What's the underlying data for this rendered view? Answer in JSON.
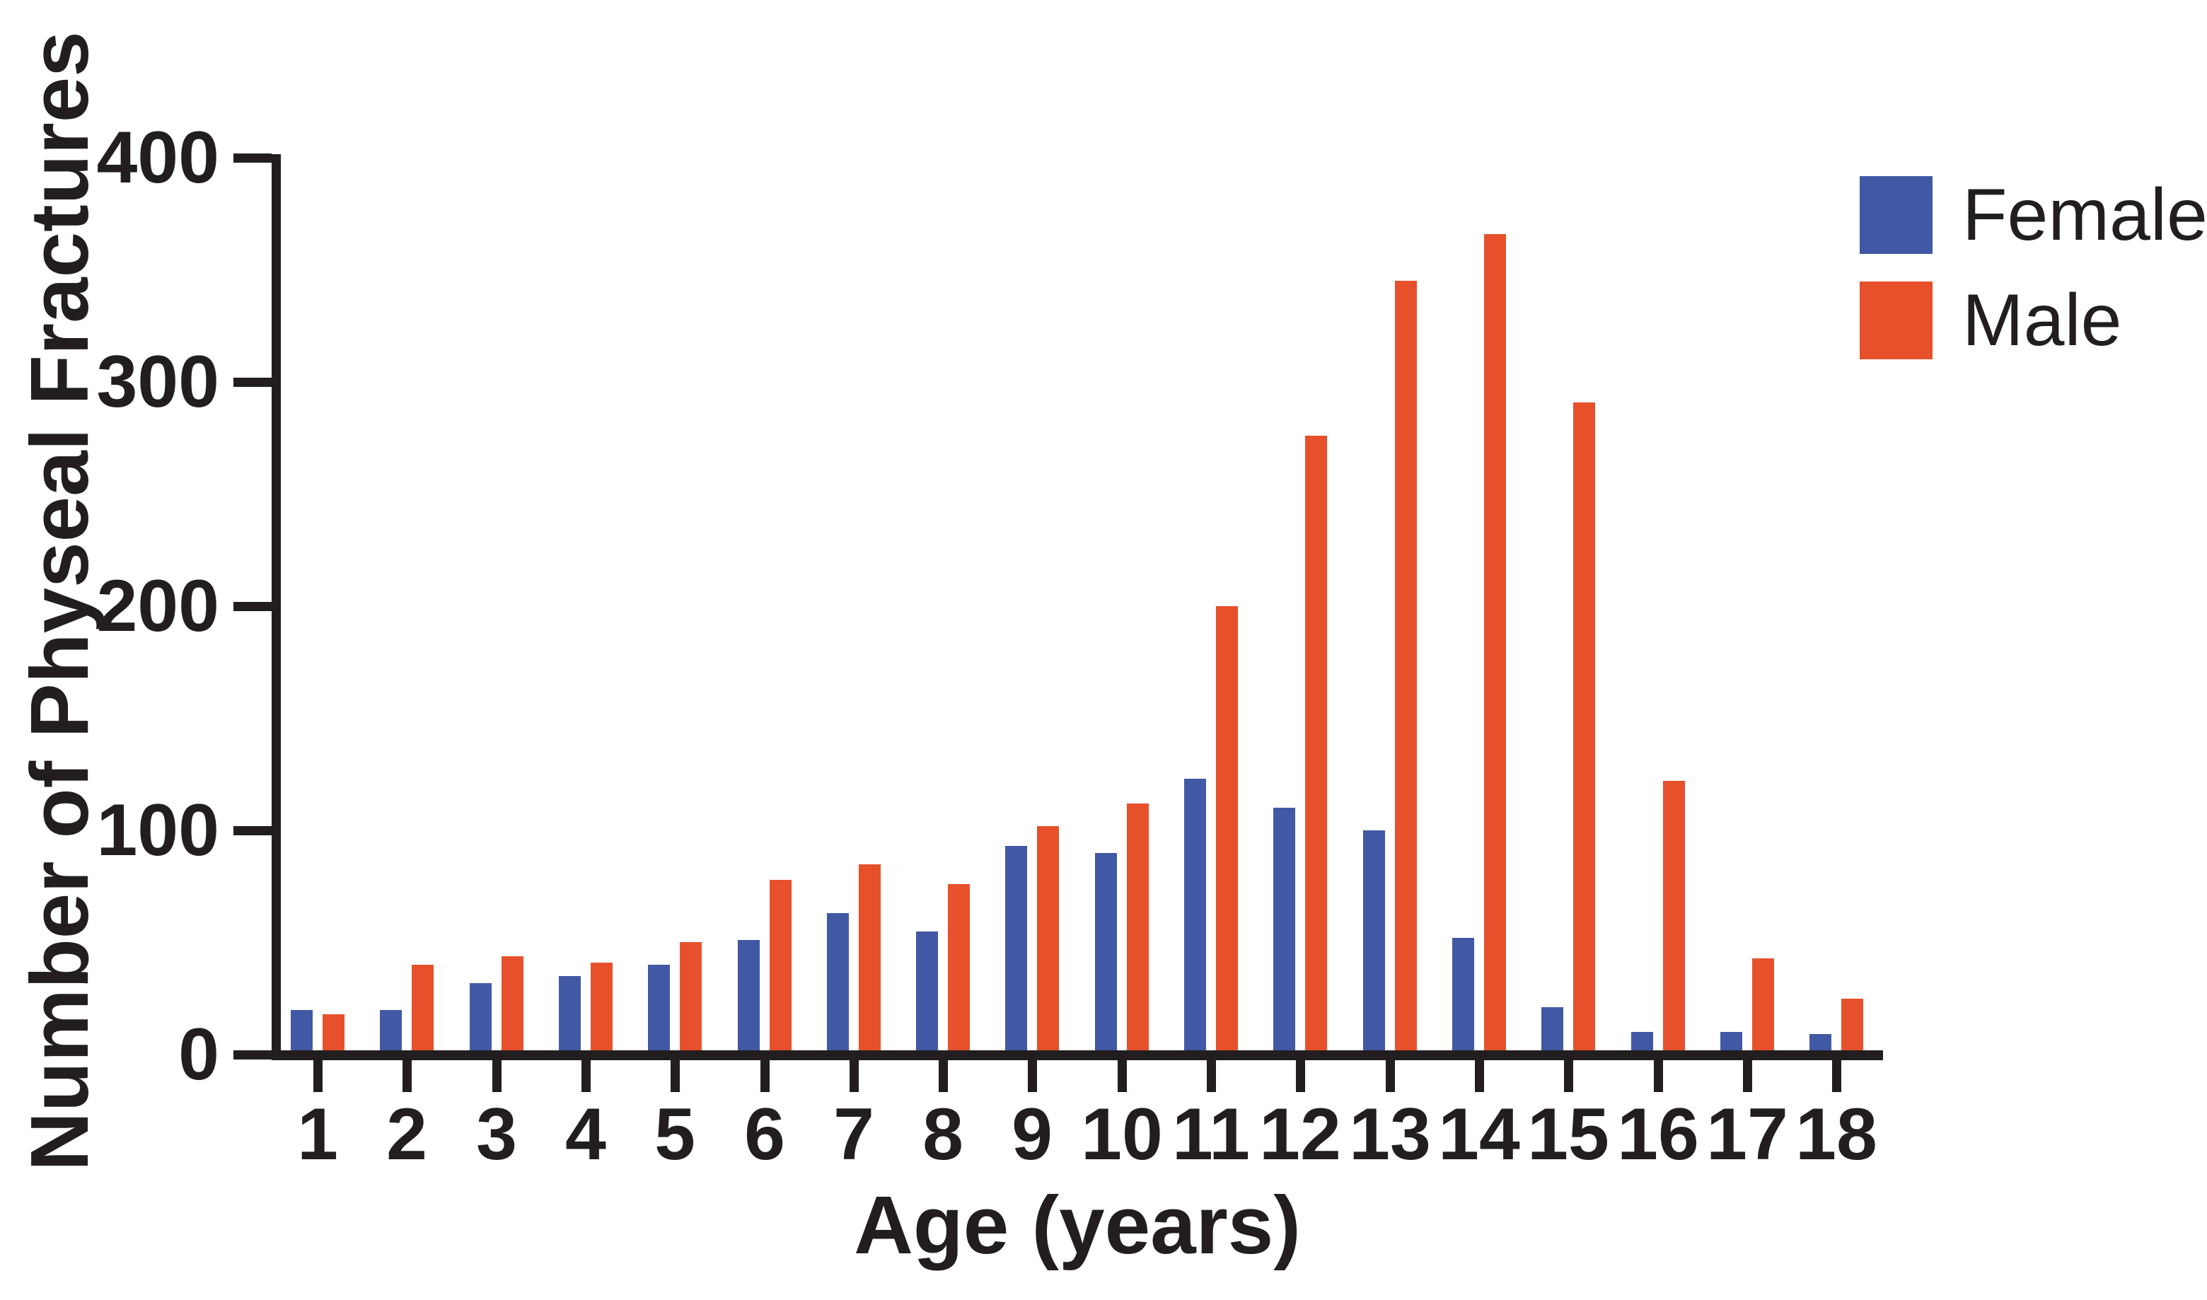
{
  "chart_data": {
    "type": "bar",
    "title": "",
    "xlabel": "Age (years)",
    "ylabel": "Number of Physeal Fractures",
    "categories": [
      "1",
      "2",
      "3",
      "4",
      "5",
      "6",
      "7",
      "8",
      "9",
      "10",
      "11",
      "12",
      "13",
      "14",
      "15",
      "16",
      "17",
      "18"
    ],
    "series": [
      {
        "name": "Female",
        "color": "#4159A4",
        "values": [
          20,
          20,
          32,
          35,
          40,
          51,
          63,
          55,
          93,
          90,
          123,
          110,
          100,
          52,
          21,
          10,
          10,
          9
        ]
      },
      {
        "name": "Male",
        "color": "#E6512C",
        "values": [
          18,
          40,
          44,
          41,
          50,
          78,
          85,
          76,
          102,
          112,
          200,
          276,
          345,
          366,
          291,
          122,
          43,
          25
        ]
      }
    ],
    "ylim": [
      0,
      400
    ],
    "yticks": [
      "0",
      "100",
      "200",
      "300",
      "400"
    ],
    "grid": false,
    "legend_position": "top-right",
    "axis_color": "#221E1F",
    "background_color": "#ffffff"
  }
}
